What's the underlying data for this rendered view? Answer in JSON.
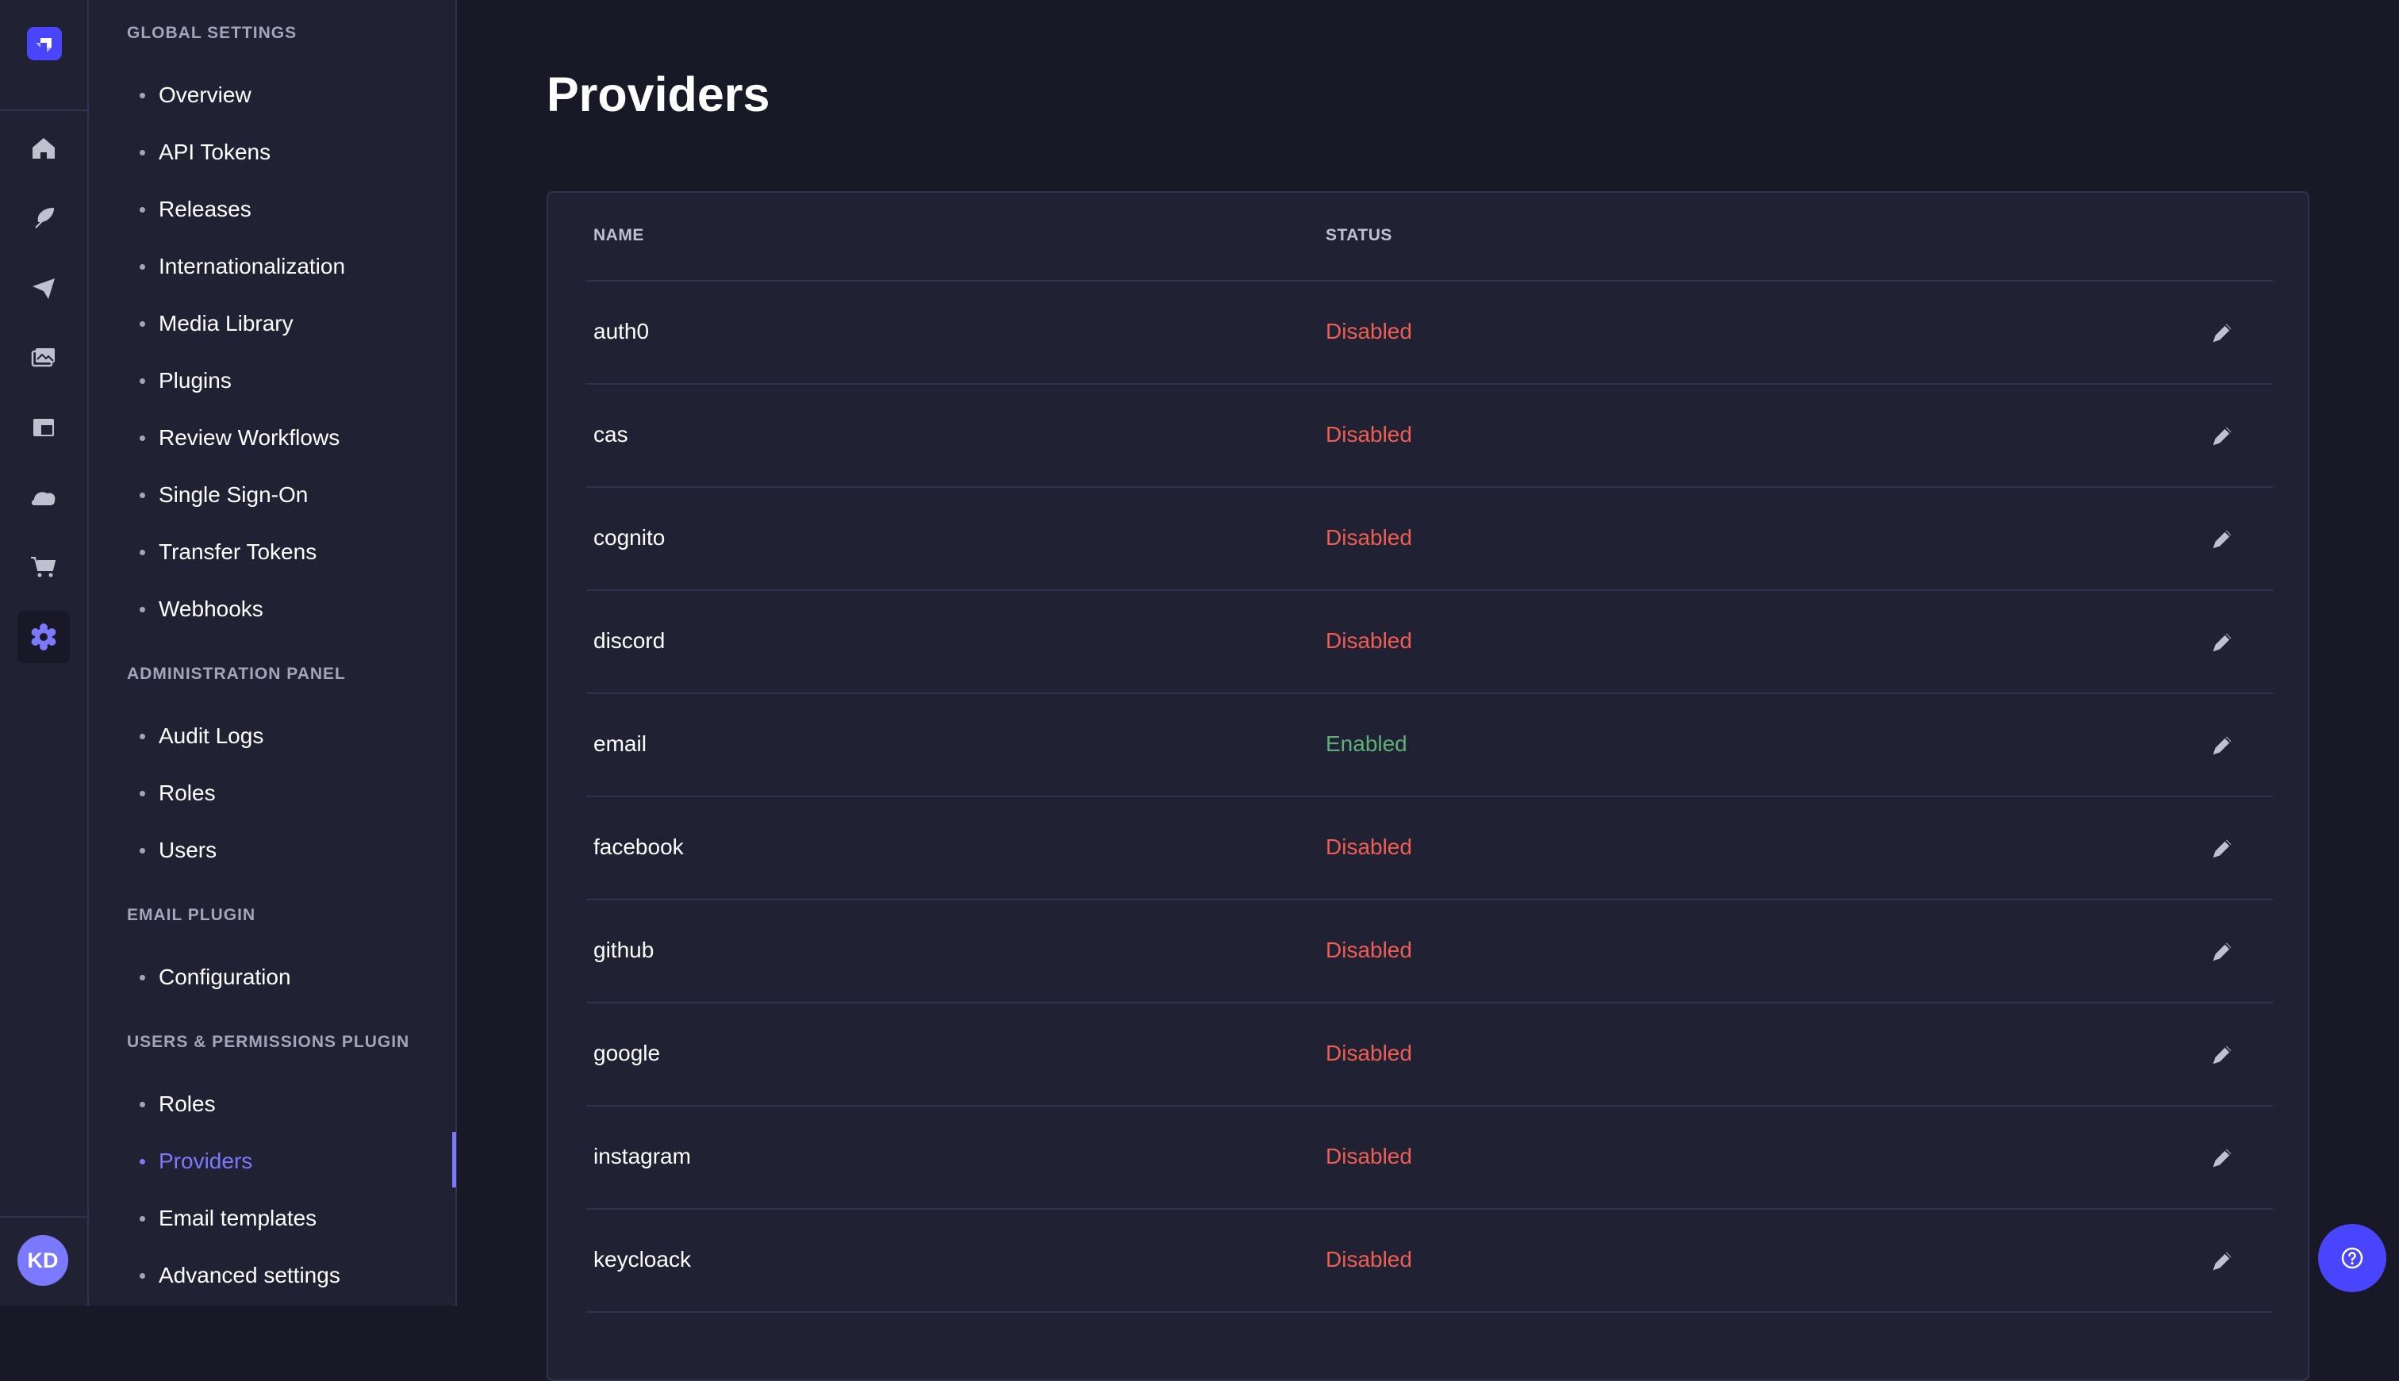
{
  "rail": {
    "items": [
      {
        "icon": "home-icon"
      },
      {
        "icon": "feather-icon"
      },
      {
        "icon": "paper-plane-icon"
      },
      {
        "icon": "images-icon"
      },
      {
        "icon": "layout-icon"
      },
      {
        "icon": "cloud-icon"
      },
      {
        "icon": "cart-icon"
      },
      {
        "icon": "gear-icon",
        "active": true
      }
    ],
    "avatar": "KD",
    "accent": "#4945ff"
  },
  "subnav": {
    "sections": [
      {
        "title": "GLOBAL SETTINGS",
        "items": [
          "Overview",
          "API Tokens",
          "Releases",
          "Internationalization",
          "Media Library",
          "Plugins",
          "Review Workflows",
          "Single Sign-On",
          "Transfer Tokens",
          "Webhooks"
        ]
      },
      {
        "title": "ADMINISTRATION PANEL",
        "items": [
          "Audit Logs",
          "Roles",
          "Users"
        ]
      },
      {
        "title": "EMAIL PLUGIN",
        "items": [
          "Configuration"
        ]
      },
      {
        "title": "USERS & PERMISSIONS PLUGIN",
        "items": [
          "Roles",
          "Providers",
          "Email templates",
          "Advanced settings"
        ]
      }
    ],
    "active_item": "Providers"
  },
  "main": {
    "title": "Providers",
    "table": {
      "headers": [
        "NAME",
        "STATUS"
      ],
      "rows": [
        {
          "name": "auth0",
          "status": "Disabled"
        },
        {
          "name": "cas",
          "status": "Disabled"
        },
        {
          "name": "cognito",
          "status": "Disabled"
        },
        {
          "name": "discord",
          "status": "Disabled"
        },
        {
          "name": "email",
          "status": "Enabled"
        },
        {
          "name": "facebook",
          "status": "Disabled"
        },
        {
          "name": "github",
          "status": "Disabled"
        },
        {
          "name": "google",
          "status": "Disabled"
        },
        {
          "name": "instagram",
          "status": "Disabled"
        },
        {
          "name": "keycloack",
          "status": "Disabled"
        }
      ]
    },
    "status_colors": {
      "Disabled": "#ee5e52",
      "Enabled": "#5cb176"
    }
  }
}
